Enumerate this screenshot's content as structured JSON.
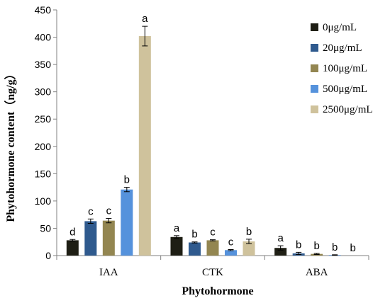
{
  "chart_data": {
    "type": "bar",
    "xlabel": "Phytohormone",
    "ylabel": "Phytohormone content（ng/g）",
    "ylim": [
      0,
      450
    ],
    "yticks": [
      0,
      50,
      100,
      150,
      200,
      250,
      300,
      350,
      400,
      450
    ],
    "categories": [
      "IAA",
      "CTK",
      "ABA"
    ],
    "legend_position": "top-right",
    "grid": false,
    "series": [
      {
        "name": "0μg/mL",
        "color": "#1e1e14",
        "values": [
          28,
          34,
          14
        ],
        "errors": [
          1.5,
          2.5,
          4
        ],
        "letters": [
          "d",
          "a",
          "a"
        ]
      },
      {
        "name": "20μg/mL",
        "color": "#2f5a8e",
        "values": [
          63,
          24,
          4
        ],
        "errors": [
          4,
          1,
          2
        ],
        "letters": [
          "c",
          "b",
          "b"
        ]
      },
      {
        "name": "100μg/mL",
        "color": "#938651",
        "values": [
          64,
          28,
          3
        ],
        "errors": [
          4,
          1,
          1
        ],
        "letters": [
          "c",
          "c",
          "b"
        ]
      },
      {
        "name": "500μg/mL",
        "color": "#5592dc",
        "values": [
          121,
          10,
          1
        ],
        "errors": [
          4,
          1,
          0.5
        ],
        "letters": [
          "b",
          "c",
          "b"
        ]
      },
      {
        "name": "2500μg/mL",
        "color": "#cfc29c",
        "values": [
          402,
          26,
          0
        ],
        "errors": [
          18,
          4,
          0
        ],
        "letters": [
          "a",
          "b",
          "b"
        ]
      }
    ]
  }
}
